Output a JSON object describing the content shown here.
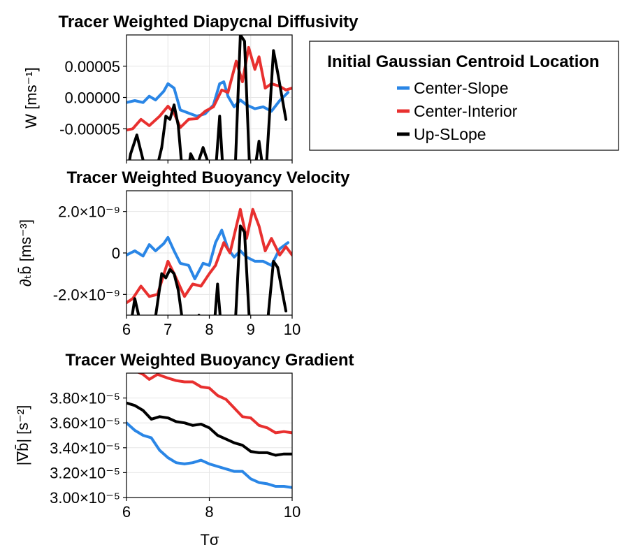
{
  "legend": {
    "title": "Initial Gaussian Centroid Location",
    "entries": [
      {
        "label": "Center-Slope",
        "color": "#2a86e6"
      },
      {
        "label": "Center-Interior",
        "color": "#e8302f"
      },
      {
        "label": "Up-SLope",
        "color": "#000000"
      }
    ]
  },
  "chart_data": [
    {
      "type": "line",
      "title": "Tracer Weighted Diapycnal Diffusivity",
      "xlabel": "",
      "ylabel": "W [ms⁻¹]",
      "xlim": [
        6,
        10
      ],
      "ylim": [
        -0.0001,
        0.0001
      ],
      "x_ticks": [
        6,
        7,
        8,
        9,
        10
      ],
      "x_tick_labels": [],
      "y_ticks": [
        -5e-05,
        0,
        5e-05
      ],
      "y_tick_labels": [
        "-0.00005",
        "0.00000",
        "0.00005"
      ],
      "grid": true,
      "series": [
        {
          "name": "Center-Slope",
          "color": "#2a86e6",
          "points": [
            [
              6.0,
              -8e-06
            ],
            [
              6.2,
              -5e-06
            ],
            [
              6.4,
              -8e-06
            ],
            [
              6.55,
              2e-06
            ],
            [
              6.7,
              -4e-06
            ],
            [
              6.9,
              1e-05
            ],
            [
              7.0,
              2.2e-05
            ],
            [
              7.15,
              1.5e-05
            ],
            [
              7.3,
              -2e-05
            ],
            [
              7.5,
              -2.5e-05
            ],
            [
              7.7,
              -3e-05
            ],
            [
              7.9,
              -2.6e-05
            ],
            [
              8.1,
              -1.2e-05
            ],
            [
              8.25,
              2.2e-05
            ],
            [
              8.35,
              2.5e-05
            ],
            [
              8.45,
              2e-06
            ],
            [
              8.6,
              -1.5e-05
            ],
            [
              8.75,
              -4e-06
            ],
            [
              8.9,
              -1.2e-05
            ],
            [
              9.1,
              -1.8e-05
            ],
            [
              9.3,
              -1.5e-05
            ],
            [
              9.5,
              -2.2e-05
            ],
            [
              9.7,
              -5e-06
            ],
            [
              9.9,
              8e-06
            ]
          ]
        },
        {
          "name": "Center-Interior",
          "color": "#e8302f",
          "points": [
            [
              6.0,
              -5.2e-05
            ],
            [
              6.15,
              -5e-05
            ],
            [
              6.35,
              -3.5e-05
            ],
            [
              6.55,
              -4.5e-05
            ],
            [
              6.8,
              -3e-05
            ],
            [
              7.0,
              -1.4e-05
            ],
            [
              7.15,
              -2.5e-05
            ],
            [
              7.3,
              -4.8e-05
            ],
            [
              7.5,
              -3.5e-05
            ],
            [
              7.7,
              -3.4e-05
            ],
            [
              7.9,
              -2.2e-05
            ],
            [
              8.1,
              -1.5e-05
            ],
            [
              8.3,
              1.2e-05
            ],
            [
              8.45,
              8e-06
            ],
            [
              8.65,
              5.8e-05
            ],
            [
              8.8,
              2.5e-05
            ],
            [
              8.95,
              8e-05
            ],
            [
              9.1,
              4.5e-05
            ],
            [
              9.2,
              6.5e-05
            ],
            [
              9.35,
              1.5e-05
            ],
            [
              9.5,
              2.2e-05
            ],
            [
              9.7,
              1.8e-05
            ],
            [
              9.85,
              1.2e-05
            ],
            [
              10.0,
              1.5e-05
            ]
          ]
        },
        {
          "name": "Up-SLope",
          "color": "#000000",
          "points": [
            [
              6.0,
              -0.00013
            ],
            [
              6.1,
              -9e-05
            ],
            [
              6.25,
              -6e-05
            ],
            [
              6.4,
              -0.0001
            ],
            [
              6.6,
              -0.00015
            ],
            [
              6.85,
              -8e-05
            ],
            [
              6.95,
              -3e-05
            ],
            [
              7.05,
              -3.5e-05
            ],
            [
              7.15,
              -1.2e-05
            ],
            [
              7.25,
              -4.5e-05
            ],
            [
              7.4,
              -0.00016
            ],
            [
              7.55,
              -9e-05
            ],
            [
              7.7,
              -0.00011
            ],
            [
              7.85,
              -8e-05
            ],
            [
              8.0,
              -0.00011
            ],
            [
              8.15,
              -0.00012
            ],
            [
              8.25,
              -3e-05
            ],
            [
              8.35,
              -0.00014
            ],
            [
              8.6,
              -0.00016
            ],
            [
              8.75,
              0.0001
            ],
            [
              8.85,
              9e-05
            ],
            [
              9.0,
              -0.00016
            ],
            [
              9.2,
              -7e-05
            ],
            [
              9.35,
              -0.00014
            ],
            [
              9.55,
              7.5e-05
            ],
            [
              9.65,
              4e-05
            ],
            [
              9.85,
              -3.5e-05
            ]
          ]
        }
      ]
    },
    {
      "type": "line",
      "title": "Tracer Weighted Buoyancy Velocity",
      "xlabel": "",
      "ylabel": "∂ₜb̄ [ms⁻³]",
      "xlim": [
        6,
        10
      ],
      "ylim": [
        -3e-09,
        3e-09
      ],
      "x_ticks": [
        6,
        7,
        8,
        9,
        10
      ],
      "x_tick_labels": [
        "6",
        "7",
        "8",
        "9",
        "10"
      ],
      "y_ticks": [
        -2e-09,
        0,
        2e-09
      ],
      "y_tick_labels": [
        "-2.0×10⁻⁹",
        "0",
        "2.0×10⁻⁹"
      ],
      "grid": true,
      "series": [
        {
          "name": "Center-Slope",
          "color": "#2a86e6",
          "points": [
            [
              6.0,
              -1e-10
            ],
            [
              6.2,
              1e-10
            ],
            [
              6.4,
              -1.5e-10
            ],
            [
              6.55,
              4e-10
            ],
            [
              6.7,
              1e-10
            ],
            [
              6.9,
              4.5e-10
            ],
            [
              7.0,
              7.5e-10
            ],
            [
              7.15,
              1e-10
            ],
            [
              7.3,
              -5e-10
            ],
            [
              7.5,
              -6e-10
            ],
            [
              7.65,
              -1.25e-09
            ],
            [
              7.85,
              -5e-10
            ],
            [
              8.0,
              -6e-10
            ],
            [
              8.15,
              5e-10
            ],
            [
              8.3,
              1.1e-09
            ],
            [
              8.45,
              2e-10
            ],
            [
              8.6,
              -2e-10
            ],
            [
              8.75,
              1e-10
            ],
            [
              8.9,
              -2e-10
            ],
            [
              9.1,
              -4e-10
            ],
            [
              9.3,
              -4e-10
            ],
            [
              9.5,
              -6e-10
            ],
            [
              9.7,
              2e-10
            ],
            [
              9.9,
              5e-10
            ]
          ]
        },
        {
          "name": "Center-Interior",
          "color": "#e8302f",
          "points": [
            [
              6.0,
              -2.4e-09
            ],
            [
              6.15,
              -2.2e-09
            ],
            [
              6.35,
              -1.6e-09
            ],
            [
              6.55,
              -2.1e-09
            ],
            [
              6.75,
              -2e-09
            ],
            [
              7.0,
              -4e-10
            ],
            [
              7.15,
              -1e-09
            ],
            [
              7.4,
              -2.1e-09
            ],
            [
              7.6,
              -1.5e-09
            ],
            [
              7.8,
              -1.6e-09
            ],
            [
              8.0,
              -1e-09
            ],
            [
              8.15,
              -6e-10
            ],
            [
              8.35,
              5e-10
            ],
            [
              8.5,
              0
            ],
            [
              8.75,
              2.1e-09
            ],
            [
              8.9,
              7e-10
            ],
            [
              9.05,
              2.1e-09
            ],
            [
              9.2,
              1.3e-09
            ],
            [
              9.35,
              1e-10
            ],
            [
              9.5,
              7e-10
            ],
            [
              9.7,
              -1e-10
            ],
            [
              9.85,
              3e-10
            ],
            [
              10.0,
              -1e-10
            ]
          ]
        },
        {
          "name": "Up-SLope",
          "color": "#000000",
          "points": [
            [
              6.0,
              -4e-09
            ],
            [
              6.1,
              -3.5e-09
            ],
            [
              6.2,
              -2.2e-09
            ],
            [
              6.35,
              -3.5e-09
            ],
            [
              6.6,
              -4.5e-09
            ],
            [
              6.85,
              -1e-09
            ],
            [
              6.95,
              -1.2e-09
            ],
            [
              7.05,
              -8e-10
            ],
            [
              7.15,
              -1e-09
            ],
            [
              7.25,
              -1.8e-09
            ],
            [
              7.4,
              -4e-09
            ],
            [
              7.6,
              -3.8e-09
            ],
            [
              7.75,
              -3e-09
            ],
            [
              7.9,
              -4e-09
            ],
            [
              8.1,
              -4e-09
            ],
            [
              8.2,
              -1.5e-09
            ],
            [
              8.3,
              -4e-09
            ],
            [
              8.6,
              -4.5e-09
            ],
            [
              8.75,
              1.3e-09
            ],
            [
              8.85,
              1e-09
            ],
            [
              9.0,
              -4.5e-09
            ],
            [
              9.2,
              -3.5e-09
            ],
            [
              9.35,
              -4.5e-09
            ],
            [
              9.55,
              -4e-10
            ],
            [
              9.65,
              -7e-10
            ],
            [
              9.85,
              -2.8e-09
            ]
          ]
        }
      ]
    },
    {
      "type": "line",
      "title": "Tracer Weighted Buoyancy Gradient",
      "xlabel": "Tσ",
      "ylabel": "|∇b̄| [s⁻²]",
      "xlim": [
        6,
        10
      ],
      "ylim": [
        3e-05,
        4e-05
      ],
      "x_ticks": [
        6,
        8,
        10
      ],
      "x_tick_labels": [
        "6",
        "8",
        "10"
      ],
      "y_ticks": [
        3e-05,
        3.2e-05,
        3.4e-05,
        3.6e-05,
        3.8e-05
      ],
      "y_tick_labels": [
        "3.00×10⁻⁵",
        "3.20×10⁻⁵",
        "3.40×10⁻⁵",
        "3.60×10⁻⁵",
        "3.80×10⁻⁵"
      ],
      "grid": true,
      "series": [
        {
          "name": "Center-Slope",
          "color": "#2a86e6",
          "points": [
            [
              6.0,
              3.6e-05
            ],
            [
              6.2,
              3.54e-05
            ],
            [
              6.4,
              3.5e-05
            ],
            [
              6.6,
              3.48e-05
            ],
            [
              6.8,
              3.38e-05
            ],
            [
              7.0,
              3.32e-05
            ],
            [
              7.2,
              3.28e-05
            ],
            [
              7.4,
              3.27e-05
            ],
            [
              7.6,
              3.28e-05
            ],
            [
              7.8,
              3.3e-05
            ],
            [
              8.0,
              3.27e-05
            ],
            [
              8.2,
              3.25e-05
            ],
            [
              8.4,
              3.23e-05
            ],
            [
              8.6,
              3.21e-05
            ],
            [
              8.8,
              3.21e-05
            ],
            [
              9.0,
              3.15e-05
            ],
            [
              9.2,
              3.12e-05
            ],
            [
              9.4,
              3.11e-05
            ],
            [
              9.6,
              3.09e-05
            ],
            [
              9.8,
              3.09e-05
            ],
            [
              10.0,
              3.08e-05
            ]
          ]
        },
        {
          "name": "Center-Interior",
          "color": "#e8302f",
          "points": [
            [
              6.0,
              4.05e-05
            ],
            [
              6.2,
              4.02e-05
            ],
            [
              6.4,
              3.99e-05
            ],
            [
              6.55,
              3.95e-05
            ],
            [
              6.75,
              3.99e-05
            ],
            [
              7.0,
              3.96e-05
            ],
            [
              7.2,
              3.94e-05
            ],
            [
              7.4,
              3.93e-05
            ],
            [
              7.6,
              3.93e-05
            ],
            [
              7.8,
              3.89e-05
            ],
            [
              8.0,
              3.88e-05
            ],
            [
              8.2,
              3.82e-05
            ],
            [
              8.4,
              3.79e-05
            ],
            [
              8.6,
              3.72e-05
            ],
            [
              8.8,
              3.65e-05
            ],
            [
              9.0,
              3.64e-05
            ],
            [
              9.2,
              3.58e-05
            ],
            [
              9.4,
              3.56e-05
            ],
            [
              9.6,
              3.52e-05
            ],
            [
              9.8,
              3.53e-05
            ],
            [
              10.0,
              3.52e-05
            ]
          ]
        },
        {
          "name": "Up-SLope",
          "color": "#000000",
          "points": [
            [
              6.0,
              3.76e-05
            ],
            [
              6.2,
              3.74e-05
            ],
            [
              6.4,
              3.7e-05
            ],
            [
              6.6,
              3.63e-05
            ],
            [
              6.8,
              3.65e-05
            ],
            [
              7.0,
              3.64e-05
            ],
            [
              7.2,
              3.61e-05
            ],
            [
              7.4,
              3.6e-05
            ],
            [
              7.6,
              3.58e-05
            ],
            [
              7.8,
              3.59e-05
            ],
            [
              8.0,
              3.56e-05
            ],
            [
              8.2,
              3.5e-05
            ],
            [
              8.4,
              3.47e-05
            ],
            [
              8.6,
              3.44e-05
            ],
            [
              8.8,
              3.42e-05
            ],
            [
              9.0,
              3.37e-05
            ],
            [
              9.2,
              3.36e-05
            ],
            [
              9.4,
              3.36e-05
            ],
            [
              9.6,
              3.34e-05
            ],
            [
              9.8,
              3.35e-05
            ],
            [
              10.0,
              3.35e-05
            ]
          ]
        }
      ]
    }
  ]
}
